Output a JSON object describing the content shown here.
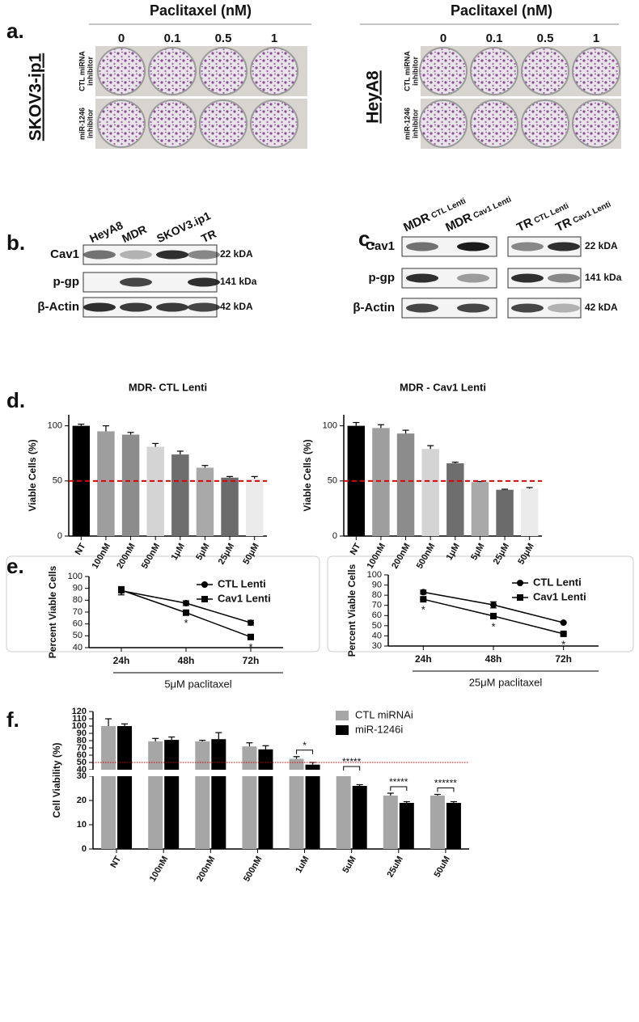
{
  "panels": {
    "a": {
      "label": "a.",
      "groups": [
        {
          "title": "Paclitaxel (nM)",
          "cell_line": "SKOV3-ip1",
          "doses": [
            "0",
            "0.1",
            "0.5",
            "1"
          ],
          "rows": [
            [
              "CTL miRNA",
              "inhibitor"
            ],
            [
              "miR-1246",
              "inhibitor"
            ]
          ]
        },
        {
          "title": "Paclitaxel (nM)",
          "cell_line": "HeyA8",
          "doses": [
            "0",
            "0.1",
            "0.5",
            "1"
          ],
          "rows": [
            [
              "CTL miRNA",
              "inhibitor"
            ],
            [
              "miR-1246",
              "inhibitor"
            ]
          ]
        }
      ]
    },
    "b": {
      "label": "b.",
      "lanes": [
        "HeyA8",
        "MDR",
        "SKOV3.ip1",
        "TR"
      ],
      "rows": [
        {
          "name": "Cav1",
          "size": "22 kDA"
        },
        {
          "name": "p-gp",
          "size": "141 kDa"
        },
        {
          "name": "β-Actin",
          "size": "42 kDA"
        }
      ]
    },
    "c": {
      "label": "c.",
      "lanes": [
        {
          "name": "MDR",
          "sub": "CTL Lenti"
        },
        {
          "name": "MDR",
          "sub": "Cav1 Lenti"
        },
        {
          "name": "TR",
          "sub": "CTL Lenti"
        },
        {
          "name": "TR",
          "sub": "Cav1 Lenti"
        }
      ],
      "rows": [
        {
          "name": "Cav1",
          "size": "22 kDA"
        },
        {
          "name": "p-gp",
          "size": "141 kDa"
        },
        {
          "name": "β-Actin",
          "size": "42 kDA"
        }
      ]
    },
    "d": {
      "label": "d."
    },
    "e": {
      "label": "e."
    },
    "f": {
      "label": "f."
    }
  },
  "chart_data": [
    {
      "type": "bar",
      "title": "MDR- CTL Lenti",
      "ylabel": "Viable Cells (%)",
      "categories": [
        "NT",
        "100nM",
        "200nM",
        "500nM",
        "1μM",
        "5μM",
        "25μM",
        "50μM"
      ],
      "values": [
        100,
        95,
        92,
        81,
        74,
        62,
        53,
        52
      ],
      "errors": [
        1.5,
        5,
        2,
        3,
        3,
        2,
        1,
        2
      ],
      "colors": [
        "#000000",
        "#9e9e9e",
        "#8c8c8c",
        "#d4d4d4",
        "#6e6e6e",
        "#a9a9a9",
        "#6b6b6b",
        "#ebebeb"
      ],
      "ylim": [
        0,
        110
      ],
      "yticks": [
        0,
        50,
        100
      ],
      "hline": {
        "value": 50,
        "color": "#e00000",
        "style": "dashed"
      }
    },
    {
      "type": "bar",
      "title": "MDR - Cav1 Lenti",
      "ylabel": "Viable Cells (%)",
      "categories": [
        "NT",
        "100nM",
        "200nM",
        "500nM",
        "1μM",
        "5μM",
        "25μM",
        "50μM"
      ],
      "values": [
        100,
        98,
        93,
        79,
        66,
        49,
        42,
        43
      ],
      "errors": [
        3,
        3,
        3,
        3,
        1,
        0.5,
        0.5,
        1
      ],
      "colors": [
        "#000000",
        "#9e9e9e",
        "#8c8c8c",
        "#d4d4d4",
        "#6e6e6e",
        "#a9a9a9",
        "#6b6b6b",
        "#ebebeb"
      ],
      "ylim": [
        0,
        110
      ],
      "yticks": [
        0,
        50,
        100
      ],
      "hline": {
        "value": 50,
        "color": "#e00000",
        "style": "dashed"
      }
    },
    {
      "type": "line",
      "ylabel": "Percent Viable Cells",
      "xlabel": "5μM paclitaxel",
      "categories": [
        "24h",
        "48h",
        "72h"
      ],
      "series": [
        {
          "name": "CTL Lenti",
          "color": "#000000",
          "marker": "circle",
          "values": [
            88,
            77.5,
            61
          ],
          "errors": [
            3.5,
            2,
            2
          ]
        },
        {
          "name": "Cav1 Lenti",
          "color": "#000000",
          "marker": "square",
          "values": [
            88.5,
            69.5,
            49
          ],
          "errors": [
            2,
            1,
            0.5
          ],
          "annotations": [
            null,
            "*",
            "*"
          ]
        }
      ],
      "ylim": [
        40,
        100
      ],
      "yticks": [
        40,
        50,
        60,
        70,
        80,
        90,
        100
      ],
      "legend": "upper right"
    },
    {
      "type": "line",
      "ylabel": "Percent Viable Cells",
      "xlabel": "25μM paclitaxel",
      "categories": [
        "24h",
        "48h",
        "72h"
      ],
      "series": [
        {
          "name": "CTL Lenti",
          "color": "#000000",
          "marker": "circle",
          "values": [
            83,
            70.5,
            53
          ],
          "errors": [
            2,
            3,
            0.5
          ]
        },
        {
          "name": "Cav1 Lenti",
          "color": "#000000",
          "marker": "square",
          "values": [
            76,
            59.5,
            42
          ],
          "errors": [
            0.5,
            0.5,
            0.5
          ],
          "annotations": [
            "*",
            "*",
            "*"
          ]
        }
      ],
      "ylim": [
        30,
        100
      ],
      "yticks": [
        30,
        40,
        50,
        60,
        70,
        80,
        90,
        100
      ],
      "legend": "upper right"
    },
    {
      "type": "grouped_bar",
      "ylabel": "Cell Viability (%)",
      "categories": [
        "NT",
        "100nM",
        "200nM",
        "500nM",
        "1uM",
        "5uM",
        "25uM",
        "50uM"
      ],
      "series": [
        {
          "name": "CTL miRNAi",
          "color": "#a6a6a6",
          "values": [
            100,
            79,
            79,
            72,
            55,
            30,
            22,
            22
          ],
          "errors": [
            10,
            4,
            1.5,
            5,
            3,
            0.5,
            1,
            0.5
          ]
        },
        {
          "name": "miR-1246i",
          "color": "#000000",
          "values": [
            100,
            81,
            82,
            68,
            47,
            26,
            19,
            19
          ],
          "errors": [
            3,
            4,
            9,
            5,
            3,
            0.5,
            0.5,
            0.5
          ]
        }
      ],
      "significance": [
        null,
        null,
        null,
        null,
        "*",
        "*****",
        "*****",
        "******"
      ],
      "ylim": [
        0,
        120
      ],
      "axis_break": [
        30,
        40
      ],
      "yticks": [
        0,
        10,
        20,
        30,
        40,
        50,
        60,
        70,
        80,
        90,
        100,
        110,
        120
      ],
      "hline": {
        "value": 50,
        "color": "#d00000",
        "style": "dotted"
      },
      "legend": "upper right"
    }
  ]
}
